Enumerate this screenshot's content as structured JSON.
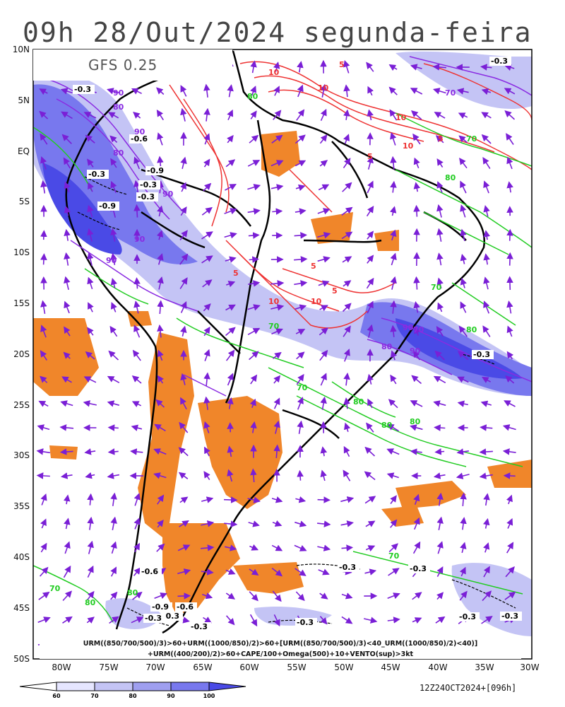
{
  "title": "09h 28/Out/2024 segunda-feira",
  "model": "GFS 0.25",
  "lat_labels": [
    "10N",
    "5N",
    "EQ",
    "5S",
    "10S",
    "15S",
    "20S",
    "25S",
    "30S",
    "35S",
    "40S",
    "45S",
    "50S"
  ],
  "lon_labels": [
    "80W",
    "75W",
    "70W",
    "65W",
    "60W",
    "55W",
    "50W",
    "45W",
    "40W",
    "35W",
    "30W"
  ],
  "formula_line1": "URM((850/700/500)/3)>60+URM((1000/850)/2)>60+[URM((850/700/500)/3)<40_URM((1000/850)/2)<40)]",
  "formula_line2": "+URM((400/200)/2)>60+CAPE/100+Omega(500)+10+VENTO(sup)>3kt",
  "colorbar_ticks": [
    "60",
    "70",
    "80",
    "90",
    "100"
  ],
  "colorbar_colors": [
    "#e6e6ff",
    "#c4c4f5",
    "#9f9ff0",
    "#7878ee",
    "#4a4ae6"
  ],
  "run_info": "12Z24OCT2024+[096h]",
  "contour_labels": {
    "omega": [
      "-0.3",
      "-0.3",
      "-0.6",
      "-0.3",
      "-0.9",
      "-0.3",
      "-0.9",
      "-0.3",
      "-0.3",
      "-0.6",
      "-0.3",
      "-0.3",
      "-0.6",
      "-0.9",
      "-0.3",
      "-0.3",
      "-0.3",
      "-0.3",
      "-0.3",
      "-0.3"
    ],
    "red": [
      "10",
      "5",
      "10",
      "5",
      "10",
      "5",
      "10",
      "5",
      "10",
      "5",
      "10",
      "5"
    ],
    "green": [
      "80",
      "70",
      "80",
      "70",
      "80",
      "80",
      "70",
      "80",
      "80",
      "70",
      "80",
      "70",
      "80",
      "70"
    ],
    "purple": [
      "90",
      "80",
      "90",
      "80",
      "90",
      "90",
      "90",
      "90",
      "70",
      "80",
      "90",
      "70"
    ]
  },
  "colors": {
    "orange": "#f0862a",
    "blue_dark": "#4a4ae6",
    "blue_mid": "#9f9ff0",
    "blue_light": "#c4c4f5",
    "red_contour": "#ee3333",
    "green_contour": "#22cc22",
    "purple_contour": "#8a2be2",
    "arrow": "#7a1fd6"
  }
}
